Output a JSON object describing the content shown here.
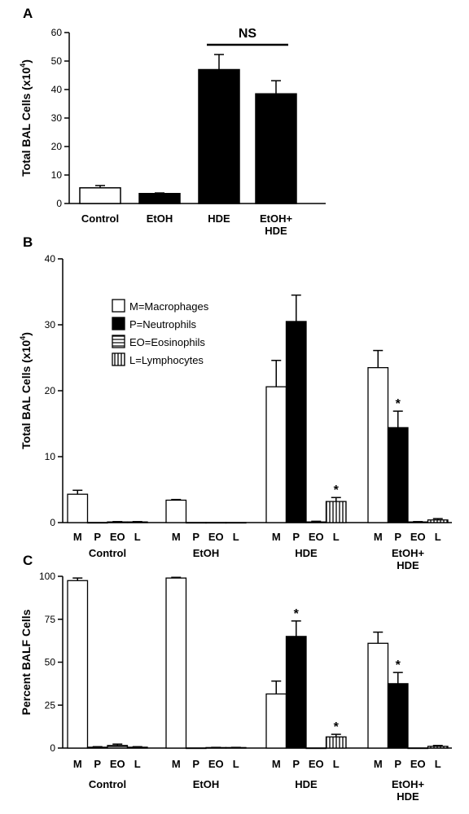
{
  "chart_data": [
    {
      "panel": "A",
      "type": "bar",
      "ylabel_text": "Total BAL Cells (x10",
      "ylabel_sup": "4",
      "ylabel_close": ")",
      "ylim": [
        0,
        60
      ],
      "yticks": [
        0,
        10,
        20,
        30,
        40,
        50,
        60
      ],
      "categories": [
        "Control",
        "EtOH",
        "HDE",
        "EtOH+\nHDE"
      ],
      "values": [
        5.5,
        3.5,
        47,
        38.5
      ],
      "errors": [
        0.8,
        0.2,
        5.3,
        4.6
      ],
      "fills": [
        "white",
        "black",
        "black",
        "black"
      ],
      "annotation": {
        "text": "NS",
        "between": [
          2,
          3
        ]
      }
    },
    {
      "panel": "B",
      "type": "bar",
      "ylabel_text": "Total BAL Cells (x10",
      "ylabel_sup": "4",
      "ylabel_close": ")",
      "ylim": [
        0,
        40
      ],
      "yticks": [
        0,
        10,
        20,
        30,
        40
      ],
      "groups": [
        "Control",
        "EtOH",
        "HDE",
        "EtOH+\nHDE"
      ],
      "subcategories": [
        "M",
        "P",
        "EO",
        "L"
      ],
      "series": [
        {
          "values": [
            4.3,
            0,
            0.1,
            0.1
          ],
          "errors": [
            0.6,
            0,
            0.05,
            0.05
          ],
          "stars": [
            false,
            false,
            false,
            false
          ]
        },
        {
          "values": [
            3.4,
            0,
            0,
            0
          ],
          "errors": [
            0.1,
            0,
            0,
            0
          ],
          "stars": [
            false,
            false,
            false,
            false
          ]
        },
        {
          "values": [
            20.6,
            30.5,
            0.1,
            3.2
          ],
          "errors": [
            4.0,
            4.0,
            0.1,
            0.6
          ],
          "stars": [
            false,
            false,
            false,
            true
          ]
        },
        {
          "values": [
            23.5,
            14.4,
            0.1,
            0.4
          ],
          "errors": [
            2.6,
            2.5,
            0.05,
            0.2
          ],
          "stars": [
            false,
            true,
            false,
            false
          ]
        }
      ],
      "legend": {
        "placement": "upper-left",
        "entries": [
          {
            "label": "M=Macrophages",
            "fill": "white"
          },
          {
            "label": "P=Neutrophils",
            "fill": "black"
          },
          {
            "label": "EO=Eosinophils",
            "fill": "hstripes"
          },
          {
            "label": "L=Lymphocytes",
            "fill": "vstripes"
          }
        ]
      }
    },
    {
      "panel": "C",
      "type": "bar",
      "ylabel_text": "Percent BALF Cells",
      "ylim": [
        0,
        100
      ],
      "yticks": [
        0,
        25,
        50,
        75,
        100
      ],
      "groups": [
        "Control",
        "EtOH",
        "HDE",
        "EtOH+\nHDE"
      ],
      "subcategories": [
        "M",
        "P",
        "EO",
        "L"
      ],
      "series": [
        {
          "values": [
            97.5,
            0.5,
            1.5,
            0.5
          ],
          "errors": [
            1.5,
            0.3,
            0.8,
            0.3
          ],
          "stars": [
            false,
            false,
            false,
            false
          ]
        },
        {
          "values": [
            99,
            0,
            0.3,
            0.3
          ],
          "errors": [
            0.4,
            0,
            0.1,
            0.1
          ],
          "stars": [
            false,
            false,
            false,
            false
          ]
        },
        {
          "values": [
            31.5,
            65,
            0,
            6.5
          ],
          "errors": [
            7.5,
            9,
            0,
            1.5
          ],
          "stars": [
            false,
            true,
            false,
            true
          ]
        },
        {
          "values": [
            61,
            37.5,
            0,
            1
          ],
          "errors": [
            6.5,
            6.5,
            0,
            0.5
          ],
          "stars": [
            false,
            true,
            false,
            false
          ]
        }
      ]
    }
  ],
  "colors": {
    "ink": "#000000",
    "paper": "#ffffff"
  }
}
